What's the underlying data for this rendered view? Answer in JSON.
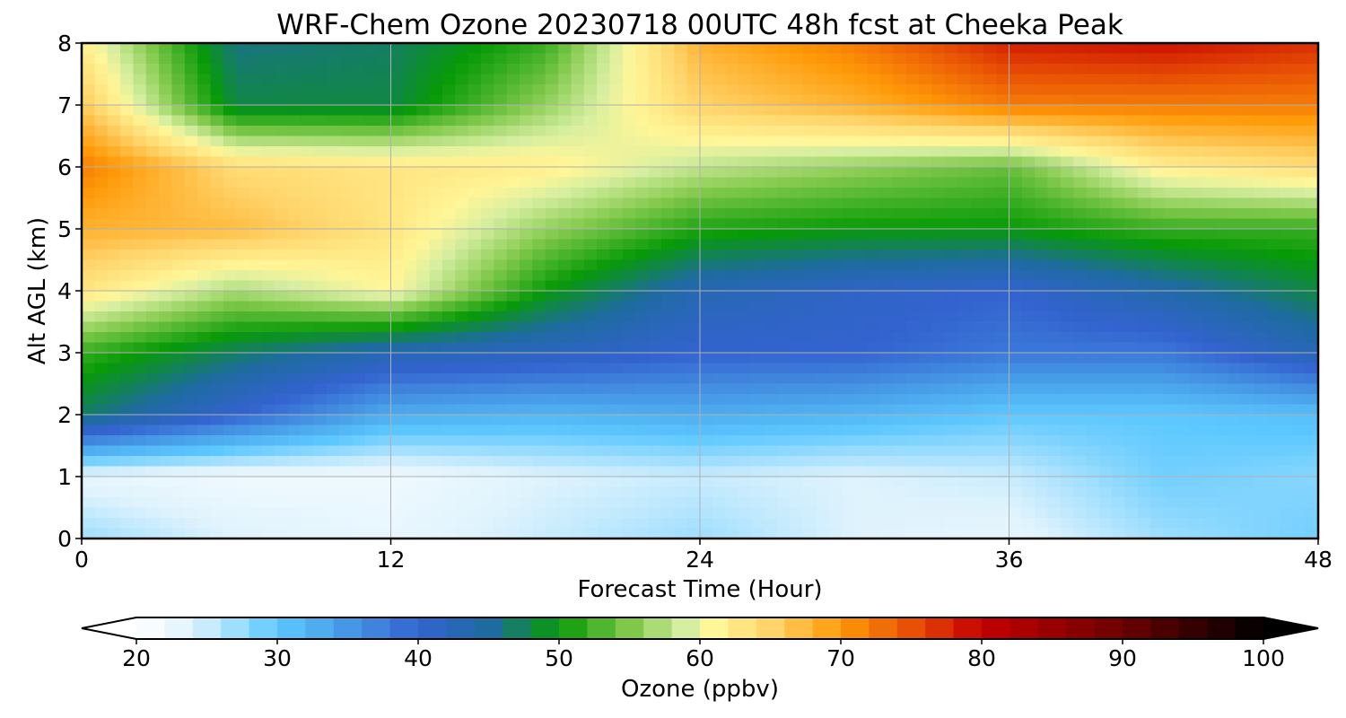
{
  "chart_data": {
    "type": "heatmap",
    "title": "WRF-Chem Ozone  20230718 00UTC 48h fcst at Cheeka Peak",
    "xlabel": "Forecast Time (Hour)",
    "ylabel": "Alt AGL (km)",
    "xlim": [
      0,
      48
    ],
    "ylim": [
      0,
      8
    ],
    "x_ticks": [
      0,
      12,
      24,
      36,
      48
    ],
    "y_ticks": [
      0,
      1,
      2,
      3,
      4,
      5,
      6,
      7,
      8
    ],
    "grid": true,
    "x_hours": [
      0,
      6,
      12,
      18,
      24,
      30,
      36,
      42,
      48
    ],
    "y_km": [
      0,
      1,
      2,
      3,
      4,
      5,
      6,
      7,
      8
    ],
    "z_ozone_ppbv": [
      [
        27,
        24,
        23,
        25,
        27,
        24,
        23,
        27,
        29
      ],
      [
        23,
        22,
        22,
        24,
        25,
        24,
        25,
        29,
        28
      ],
      [
        47,
        40,
        33,
        32,
        33,
        32,
        30,
        30,
        31
      ],
      [
        52,
        47,
        43,
        42,
        40,
        40,
        38,
        38,
        43
      ],
      [
        63,
        57,
        61,
        50,
        43,
        41,
        40,
        44,
        48
      ],
      [
        68,
        67,
        63,
        56,
        51,
        50,
        50,
        52,
        52
      ],
      [
        72,
        64,
        63,
        62,
        58,
        56,
        54,
        62,
        64
      ],
      [
        66,
        48,
        48,
        56,
        65,
        68,
        72,
        72,
        72
      ],
      [
        62,
        46,
        47,
        52,
        68,
        72,
        78,
        79,
        77
      ]
    ],
    "colorbar": {
      "label": "Ozone  (ppbv)",
      "min": 20,
      "max": 100,
      "ticks": [
        20,
        30,
        40,
        50,
        60,
        70,
        80,
        90,
        100
      ],
      "extend": "both",
      "stops": [
        {
          "value": 20,
          "color": "#ffffff"
        },
        {
          "value": 24,
          "color": "#dff3fd"
        },
        {
          "value": 30,
          "color": "#5cc8ff"
        },
        {
          "value": 34,
          "color": "#4aa3ea"
        },
        {
          "value": 40,
          "color": "#3363cf"
        },
        {
          "value": 45,
          "color": "#1e6ba0"
        },
        {
          "value": 50,
          "color": "#079a07"
        },
        {
          "value": 55,
          "color": "#7fc84a"
        },
        {
          "value": 59,
          "color": "#d6eea0"
        },
        {
          "value": 61,
          "color": "#fff698"
        },
        {
          "value": 65,
          "color": "#ffd46a"
        },
        {
          "value": 70,
          "color": "#ff9a08"
        },
        {
          "value": 75,
          "color": "#e85005"
        },
        {
          "value": 80,
          "color": "#c40000"
        },
        {
          "value": 90,
          "color": "#6b0000"
        },
        {
          "value": 100,
          "color": "#000000"
        }
      ]
    }
  }
}
